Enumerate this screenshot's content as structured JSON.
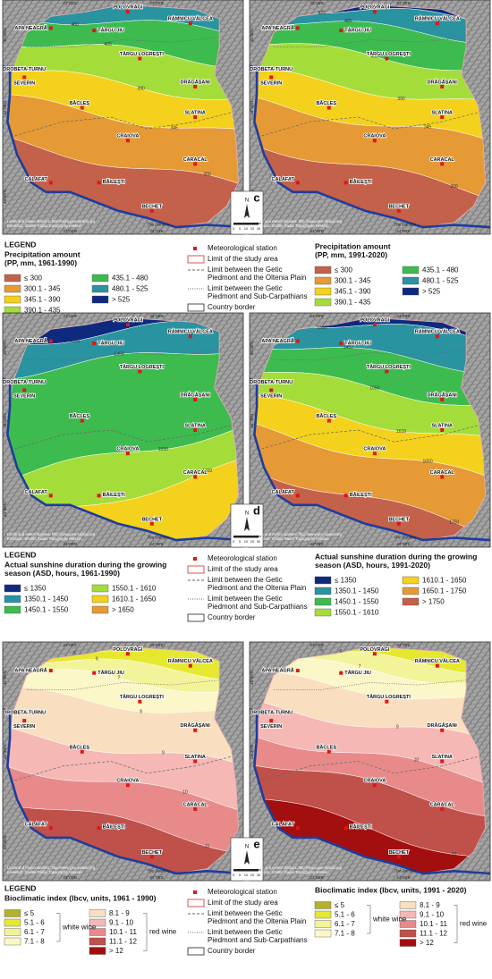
{
  "map_text": {
    "stations": [
      "POLOVRAGI",
      "APA NEAGRĂ",
      "TÂRGU JIU",
      "RÂMNICU VÂLCEA",
      "TÂRGU LOGREȘTI",
      "DROBETA-TURNU",
      "SEVERIN",
      "DRĂGĂȘANI",
      "BĂCLEȘ",
      "SLATINA",
      "CRAIOVA",
      "CARACAL",
      "CALAFAT",
      "BĂILEȘTI",
      "BECHET"
    ],
    "lon_labels": [
      "23°00'E",
      "24°00'E"
    ],
    "lat_labels": [
      "45°00'N",
      "44°30'N",
      "44°00'N"
    ],
    "credits": [
      "Limits and meteo stations: http://www.geo-spatial.org",
      "Elevation: Shuttle Radar Topography Mission"
    ],
    "river": "The Danube",
    "north": "N",
    "scale": [
      "0",
      "5",
      "10",
      "20",
      "30"
    ],
    "scale_unit": "km"
  },
  "legend_heading": "LEGEND",
  "legend_symbols": [
    [
      "Meteorological station"
    ],
    [
      "Limit of the study area"
    ],
    [
      "Limit between the Getic",
      "Piedmont and the Oltenia Plain"
    ],
    [
      "Limit between the Getic",
      "Piedmont and Sub-Carpathians"
    ],
    [
      "Country border"
    ]
  ],
  "panels": [
    {
      "label": "c",
      "maps": [
        {
          "contour_labels": [
            "480",
            "435",
            "390",
            "345",
            "300"
          ]
        },
        {
          "contour_labels": [
            "525",
            "480",
            "435",
            "390",
            "345",
            "300"
          ]
        }
      ],
      "classes": [
        {
          "title": [
            "Precipitation amount",
            "(PP, mm, 1961-1990)"
          ],
          "items": [
            {
              "label": "≤ 300",
              "color": "#c4614a"
            },
            {
              "label": "300.1 - 345",
              "color": "#e59a35"
            },
            {
              "label": "345.1 - 390",
              "color": "#f4d11c"
            },
            {
              "label": "390.1 - 435",
              "color": "#a4dd3a"
            },
            {
              "label": "435.1 - 480",
              "color": "#3dbb4f"
            },
            {
              "label": "480.1 - 525",
              "color": "#2a93a0"
            },
            {
              "label": "> 525",
              "color": "#0e2a7e"
            }
          ]
        },
        {
          "title": [
            "Precipitation amount",
            "(PP, mm, 1991-2020)"
          ],
          "items": [
            {
              "label": "≤ 300",
              "color": "#c4614a"
            },
            {
              "label": "300.1 - 345",
              "color": "#e59a35"
            },
            {
              "label": "345.1 - 390",
              "color": "#f4d11c"
            },
            {
              "label": "390.1 - 435",
              "color": "#a4dd3a"
            },
            {
              "label": "435.1 - 480",
              "color": "#3dbb4f"
            },
            {
              "label": "480.1 - 525",
              "color": "#2a93a0"
            },
            {
              "label": "> 525",
              "color": "#0e2a7e"
            }
          ]
        }
      ]
    },
    {
      "label": "d",
      "maps": [
        {
          "contour_labels": [
            "1350",
            "1450",
            "1550",
            "1610"
          ]
        },
        {
          "contour_labels": [
            "1350",
            "1450",
            "1550",
            "1610",
            "1650",
            "1750"
          ]
        }
      ],
      "classes": [
        {
          "title": [
            "Actual sunshine duration during the growing",
            "season (ASD, hours, 1961-1990)"
          ],
          "items": [
            {
              "label": "≤ 1350",
              "color": "#0e2a7e"
            },
            {
              "label": "1350.1 - 1450",
              "color": "#2a93a0"
            },
            {
              "label": "1450.1 - 1550",
              "color": "#3dbb4f"
            },
            {
              "label": "1550.1 - 1610",
              "color": "#a4dd3a"
            },
            {
              "label": "1610.1 - 1650",
              "color": "#f4d11c"
            },
            {
              "label": "> 1650",
              "color": "#e59a35"
            }
          ]
        },
        {
          "title": [
            "Actual sunshine duration during the growing",
            "season (ASD, hours, 1991-2020)"
          ],
          "items": [
            {
              "label": "≤ 1350",
              "color": "#0e2a7e"
            },
            {
              "label": "1350.1 - 1450",
              "color": "#2a93a0"
            },
            {
              "label": "1450.1 - 1550",
              "color": "#3dbb4f"
            },
            {
              "label": "1550.1 - 1610",
              "color": "#a4dd3a"
            },
            {
              "label": "1610.1 - 1650",
              "color": "#f4d11c"
            },
            {
              "label": "1650.1 - 1750",
              "color": "#e59a35"
            },
            {
              "label": "> 1750",
              "color": "#c4614a"
            }
          ]
        }
      ]
    },
    {
      "label": "e",
      "maps": [
        {
          "contour_labels": [
            "5",
            "6",
            "7",
            "8",
            "9",
            "10",
            "11"
          ]
        },
        {
          "contour_labels": [
            "5",
            "6",
            "7",
            "8",
            "9",
            "10",
            "11",
            "12"
          ]
        }
      ],
      "groups": [
        "white wine",
        "red wine"
      ],
      "classes": [
        {
          "title": [
            "Bioclimatic index (Ibcv, units, 1961 - 1990)"
          ],
          "items": [
            {
              "label": "≤ 5",
              "color": "#b5b22a"
            },
            {
              "label": "5.1 - 6",
              "color": "#e6e830"
            },
            {
              "label": "6.1 - 7",
              "color": "#f3f39a"
            },
            {
              "label": "7.1 - 8",
              "color": "#fbf7c8"
            },
            {
              "label": "8.1 - 9",
              "color": "#f9dfc0"
            },
            {
              "label": "9.1 - 10",
              "color": "#f5b8b5"
            },
            {
              "label": "10.1 - 11",
              "color": "#e88a8a"
            },
            {
              "label": "11.1 - 12",
              "color": "#c0504a"
            },
            {
              "label": "> 12",
              "color": "#a30e0e"
            }
          ]
        },
        {
          "title": [
            "Bioclimatic index (Ibcv, units, 1991 - 2020)"
          ],
          "items": [
            {
              "label": "≤ 5",
              "color": "#b5b22a"
            },
            {
              "label": "5.1 - 6",
              "color": "#e6e830"
            },
            {
              "label": "6.1 - 7",
              "color": "#f3f39a"
            },
            {
              "label": "7.1 - 8",
              "color": "#fbf7c8"
            },
            {
              "label": "8.1 - 9",
              "color": "#f9dfc0"
            },
            {
              "label": "9.1 - 10",
              "color": "#f5b8b5"
            },
            {
              "label": "10.1 - 11",
              "color": "#e88a8a"
            },
            {
              "label": "11.1 - 12",
              "color": "#c0504a"
            },
            {
              "label": "> 12",
              "color": "#a30e0e"
            }
          ]
        }
      ]
    }
  ]
}
